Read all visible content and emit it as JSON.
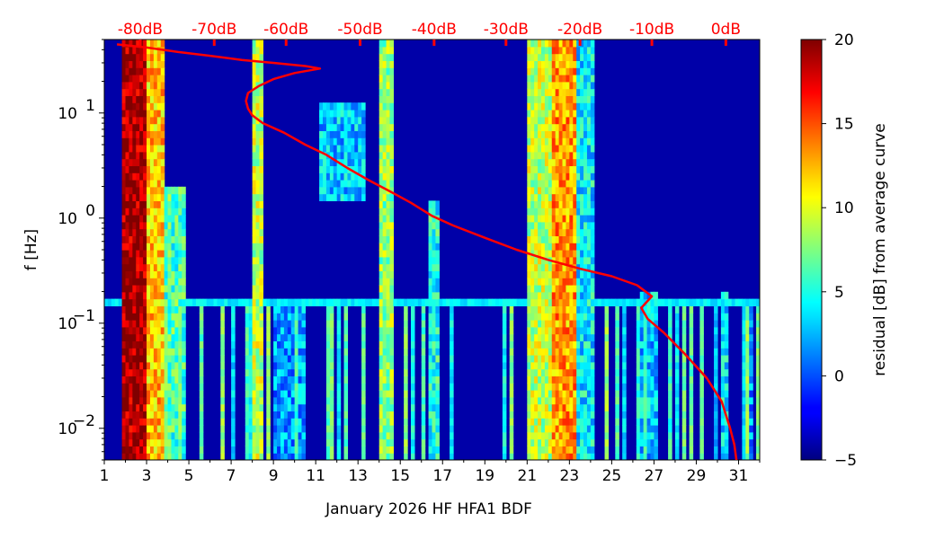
{
  "chart_data": {
    "type": "heatmap",
    "title": "",
    "xlabel": "January 2026 HF HFA1  BDF",
    "ylabel": "f [Hz]",
    "x_range": [
      1,
      32
    ],
    "y_range": [
      0.005,
      50
    ],
    "y_scale": "log",
    "x_ticks": [
      1,
      3,
      5,
      7,
      9,
      11,
      13,
      15,
      17,
      19,
      21,
      23,
      25,
      27,
      29,
      31
    ],
    "x_tick_labels": [
      "1",
      "3",
      "5",
      "7",
      "9",
      "11",
      "13",
      "15",
      "17",
      "19",
      "21",
      "23",
      "25",
      "27",
      "29",
      "31"
    ],
    "y_ticks": [
      {
        "value": 0.01,
        "base": "10",
        "exp": "−2"
      },
      {
        "value": 0.1,
        "base": "10",
        "exp": "−1"
      },
      {
        "value": 1,
        "base": "10",
        "exp": "0"
      },
      {
        "value": 10,
        "base": "10",
        "exp": "1"
      }
    ],
    "colorbar": {
      "label": "residual [dB] from average curve",
      "min": -5,
      "max": 20,
      "ticks": [
        -5,
        0,
        5,
        10,
        15,
        20
      ],
      "tick_labels": [
        "−5",
        "0",
        "5",
        "10",
        "15",
        "20"
      ],
      "colormap": "jet"
    },
    "top_db_labels": [
      {
        "text": "-80dB",
        "x": 2.7
      },
      {
        "text": "-70dB",
        "x": 6.2
      },
      {
        "text": "-60dB",
        "x": 9.6
      },
      {
        "text": "-50dB",
        "x": 13.1
      },
      {
        "text": "-40dB",
        "x": 16.6
      },
      {
        "text": "-30dB",
        "x": 20.0
      },
      {
        "text": "-20dB",
        "x": 23.5
      },
      {
        "text": "-10dB",
        "x": 26.9
      },
      {
        "text": "0dB",
        "x": 30.4
      }
    ],
    "background_level": -4,
    "hot_bands": [
      {
        "x0": 1.9,
        "x1": 3.0,
        "level": 22,
        "fmin": 0.005,
        "fmax": 50
      },
      {
        "x0": 3.0,
        "x1": 3.9,
        "level": 15,
        "fmin": 0.005,
        "fmax": 50
      },
      {
        "x0": 3.9,
        "x1": 4.8,
        "level": 9,
        "fmin": 0.005,
        "fmax": 2
      },
      {
        "x0": 8.0,
        "x1": 8.5,
        "level": 12,
        "fmin": 0.005,
        "fmax": 50
      },
      {
        "x0": 9.0,
        "x1": 10.5,
        "level": 5,
        "fmin": 0.005,
        "fmax": 0.15
      },
      {
        "x0": 11.2,
        "x1": 13.4,
        "level": 6,
        "fmin": 1.5,
        "fmax": 12
      },
      {
        "x0": 14.0,
        "x1": 14.6,
        "level": 11,
        "fmin": 0.005,
        "fmax": 50
      },
      {
        "x0": 16.3,
        "x1": 16.9,
        "level": 8,
        "fmin": 0.005,
        "fmax": 1.5
      },
      {
        "x0": 21.0,
        "x1": 22.2,
        "level": 12,
        "fmin": 0.005,
        "fmax": 50
      },
      {
        "x0": 22.2,
        "x1": 23.4,
        "level": 16,
        "fmin": 0.005,
        "fmax": 50
      },
      {
        "x0": 23.4,
        "x1": 24.2,
        "level": 7,
        "fmin": 0.005,
        "fmax": 50
      },
      {
        "x0": 26.4,
        "x1": 27.1,
        "level": 6,
        "fmin": 0.005,
        "fmax": 0.2
      },
      {
        "x0": 30.1,
        "x1": 30.5,
        "level": 7,
        "fmin": 0.005,
        "fmax": 0.2
      },
      {
        "x0": 31.3,
        "x1": 31.7,
        "level": 5,
        "fmin": 0.005,
        "fmax": 0.15
      }
    ],
    "horizontal_band": {
      "f": 0.16,
      "level": 3
    },
    "average_curve": {
      "x": [
        1.6,
        3.0,
        4.5,
        6.0,
        7.5,
        9.0,
        10.5,
        11.2,
        10.0,
        9.0,
        8.3,
        7.8,
        7.7,
        7.8,
        8.0,
        8.5,
        9.5,
        10.5,
        11.5,
        12.5,
        13.5,
        14.5,
        15.5,
        16.5,
        17.5,
        19.0,
        20.5,
        22.0,
        23.5,
        25.0,
        26.2,
        26.9,
        26.4,
        26.7,
        27.5,
        28.5,
        29.5,
        30.2,
        30.6,
        30.8,
        30.9
      ],
      "y": [
        45,
        42,
        38,
        35,
        32,
        30,
        28,
        26.5,
        24,
        21,
        18,
        15.5,
        13,
        11,
        9.5,
        8,
        6.5,
        5,
        4,
        3,
        2.3,
        1.8,
        1.4,
        1.05,
        0.85,
        0.65,
        0.5,
        0.4,
        0.33,
        0.28,
        0.23,
        0.18,
        0.14,
        0.11,
        0.08,
        0.05,
        0.03,
        0.018,
        0.01,
        0.007,
        0.005
      ]
    }
  }
}
